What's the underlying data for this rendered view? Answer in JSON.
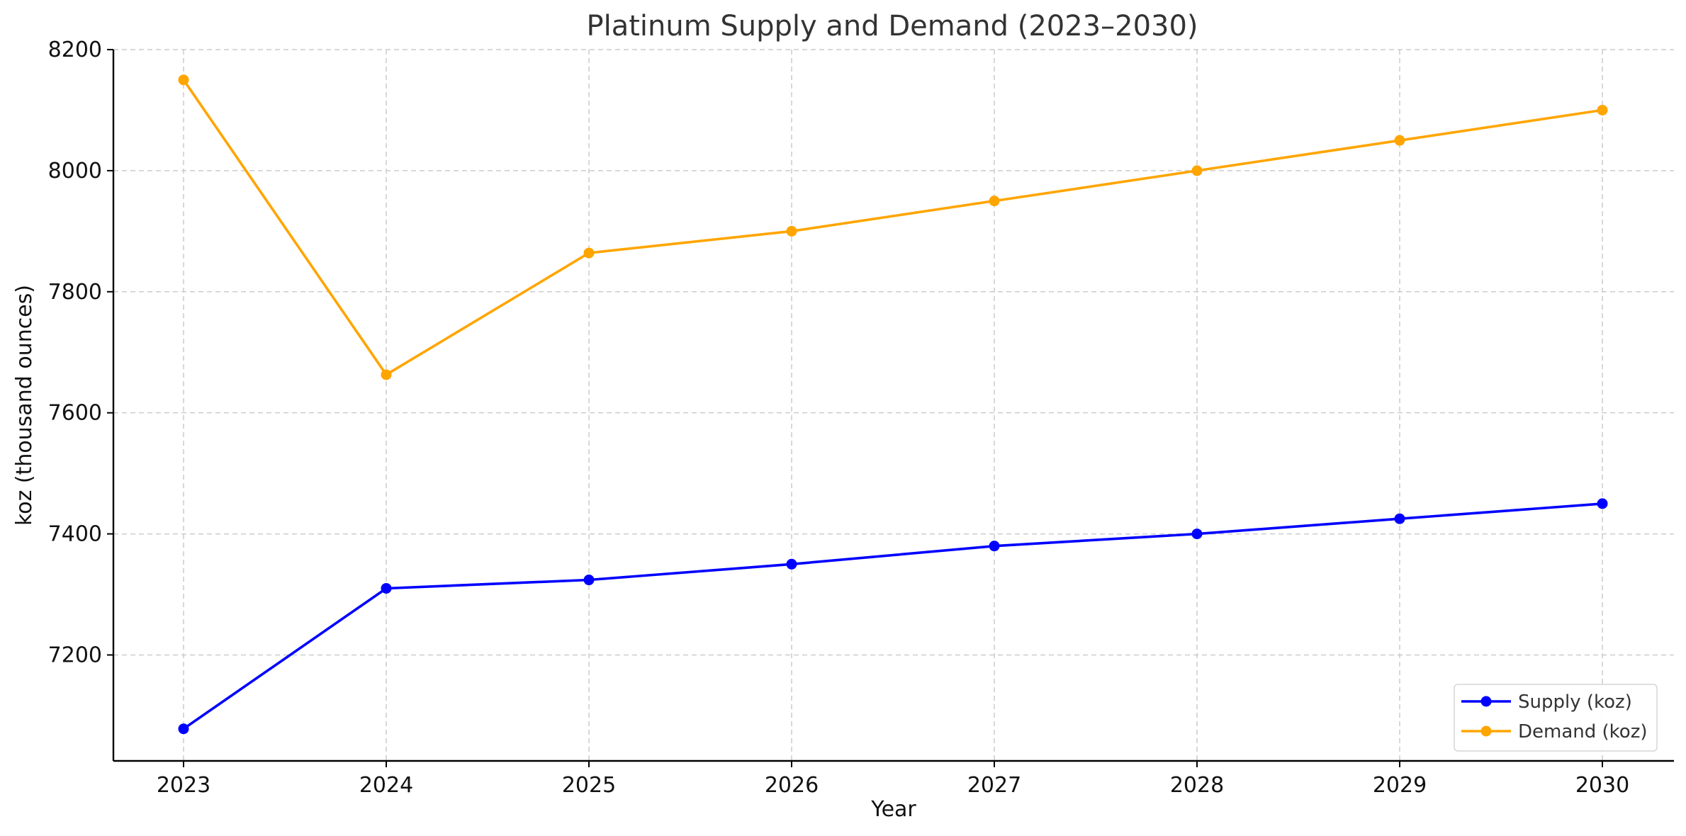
{
  "chart_data": {
    "type": "line",
    "title": "Platinum Supply and Demand (2023–2030)",
    "xlabel": "Year",
    "ylabel": "koz (thousand ounces)",
    "categories": [
      "2023",
      "2024",
      "2025",
      "2026",
      "2027",
      "2028",
      "2029",
      "2030"
    ],
    "y_ticks": [
      7200,
      7400,
      7600,
      7800,
      8000,
      8200
    ],
    "ylim": [
      7025,
      8200
    ],
    "grid": true,
    "legend_position": "bottom-right",
    "series": [
      {
        "name": "Supply (koz)",
        "color": "#0000ff",
        "marker": "circle",
        "values": [
          7078,
          7310,
          7324,
          7350,
          7380,
          7400,
          7425,
          7450
        ]
      },
      {
        "name": "Demand (koz)",
        "color": "#ffa500",
        "marker": "circle",
        "values": [
          8150,
          7663,
          7864,
          7900,
          7950,
          8000,
          8050,
          8100
        ]
      }
    ]
  }
}
